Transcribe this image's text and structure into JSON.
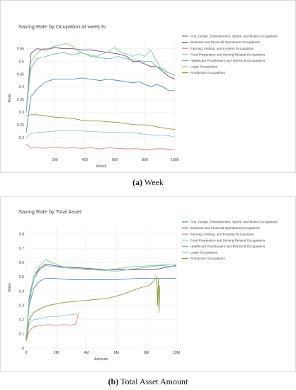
{
  "captions": [
    {
      "label": "(a)",
      "text": "Week"
    },
    {
      "label": "(b)",
      "text": "Total Asset Amount"
    }
  ],
  "chart_data": [
    {
      "type": "line",
      "title": "Saving Rate by Ocupation at week ts",
      "xlabel": "Week",
      "ylabel": "Rate",
      "xlim": [
        10,
        1010
      ],
      "ylim": [
        0.13,
        0.58
      ],
      "xticks": [
        200,
        400,
        600,
        800,
        1000
      ],
      "xtick_labels": [
        "200",
        "400",
        "600",
        "800",
        "1000"
      ],
      "yticks": [
        0.15,
        0.2,
        0.25,
        0.3,
        0.35,
        0.4,
        0.45,
        0.5,
        0.55
      ],
      "ytick_labels": [
        "",
        "0.2",
        "0.25",
        "0.3",
        "0.35",
        "0.4",
        "0.45",
        "0.5",
        "0.55"
      ],
      "grid": true,
      "legend_position": "right",
      "series": [
        {
          "name": "Arts, Design, Entertainment, Sports, and Media Occupations",
          "color": "#5b87b8",
          "x": [
            10,
            40,
            80,
            140,
            200,
            260,
            320,
            380,
            440,
            500,
            560,
            620,
            680,
            720,
            760,
            800,
            840,
            880,
            920,
            960,
            1000
          ],
          "y": [
            0.22,
            0.36,
            0.39,
            0.42,
            0.43,
            0.43,
            0.43,
            0.435,
            0.43,
            0.425,
            0.43,
            0.425,
            0.42,
            0.415,
            0.42,
            0.41,
            0.4,
            0.41,
            0.4,
            0.385,
            0.385
          ]
        },
        {
          "name": "Business and Financial Operations Occupations",
          "color": "#7b3f8c",
          "x": [
            10,
            40,
            80,
            140,
            200,
            260,
            320,
            380,
            440,
            500,
            560,
            620,
            680,
            720,
            760,
            800,
            840,
            880,
            920,
            960,
            1000
          ],
          "y": [
            0.3,
            0.53,
            0.55,
            0.545,
            0.555,
            0.55,
            0.55,
            0.545,
            0.545,
            0.54,
            0.535,
            0.53,
            0.52,
            0.5,
            0.5,
            0.49,
            0.48,
            0.48,
            0.46,
            0.44,
            0.43
          ]
        },
        {
          "name": "Farming, Fishing, and Forestry Occupations",
          "color": "#e8827e",
          "x": [
            10,
            40,
            80,
            140,
            200,
            260,
            320,
            380,
            440,
            500,
            560,
            620,
            680,
            740,
            800,
            860,
            920,
            980,
            1000
          ],
          "y": [
            0.175,
            0.158,
            0.16,
            0.158,
            0.163,
            0.158,
            0.16,
            0.157,
            0.16,
            0.155,
            0.16,
            0.157,
            0.155,
            0.156,
            0.153,
            0.155,
            0.156,
            0.152,
            0.152
          ]
        },
        {
          "name": "Food Preparation and Serving Related Occupations",
          "color": "#8fc7e0",
          "x": [
            10,
            40,
            80,
            140,
            200,
            260,
            320,
            380,
            440,
            500,
            560,
            620,
            680,
            740,
            800,
            860,
            920,
            980,
            1000
          ],
          "y": [
            0.2,
            0.215,
            0.22,
            0.222,
            0.225,
            0.228,
            0.228,
            0.226,
            0.224,
            0.222,
            0.221,
            0.22,
            0.22,
            0.218,
            0.212,
            0.21,
            0.21,
            0.205,
            0.205
          ]
        },
        {
          "name": "Healthcare Practitioners and Technical Occupations",
          "color": "#6fb8b0",
          "x": [
            10,
            40,
            80,
            140,
            200,
            260,
            320,
            380,
            440,
            500,
            560,
            620,
            680,
            740,
            800,
            840,
            880,
            920,
            960,
            1000
          ],
          "y": [
            0.3,
            0.47,
            0.51,
            0.52,
            0.53,
            0.535,
            0.525,
            0.535,
            0.52,
            0.515,
            0.51,
            0.52,
            0.51,
            0.505,
            0.5,
            0.5,
            0.48,
            0.47,
            0.455,
            0.445
          ]
        },
        {
          "name": "Legal Occupations",
          "color": "#7fd08a",
          "x": [
            10,
            40,
            80,
            120,
            160,
            200,
            240,
            280,
            320,
            360,
            400,
            440,
            480,
            520,
            560,
            600,
            640,
            680,
            720,
            760,
            800,
            840,
            880,
            920,
            960,
            1000
          ],
          "y": [
            0.3,
            0.5,
            0.53,
            0.55,
            0.55,
            0.56,
            0.565,
            0.57,
            0.56,
            0.54,
            0.53,
            0.525,
            0.52,
            0.53,
            0.54,
            0.555,
            0.535,
            0.53,
            0.52,
            0.53,
            0.52,
            0.545,
            0.5,
            0.46,
            0.455,
            0.445
          ]
        },
        {
          "name": "Production Occupations",
          "color": "#8a9a3a",
          "x": [
            10,
            40,
            80,
            140,
            200,
            260,
            320,
            380,
            440,
            500,
            560,
            620,
            680,
            740,
            800,
            860,
            920,
            980,
            1000
          ],
          "y": [
            0.285,
            0.29,
            0.29,
            0.285,
            0.28,
            0.278,
            0.275,
            0.268,
            0.265,
            0.265,
            0.262,
            0.26,
            0.255,
            0.25,
            0.25,
            0.245,
            0.238,
            0.233,
            0.232
          ]
        }
      ]
    },
    {
      "type": "line",
      "title": "Saving Rate by Total Asset",
      "xlabel": "Amount",
      "ylabel": "Rate",
      "xlim": [
        0,
        10000000
      ],
      "ylim": [
        0,
        0.85
      ],
      "xticks": [
        0,
        2000000,
        4000000,
        6000000,
        8000000,
        10000000
      ],
      "xtick_labels": [
        "0",
        "2M",
        "4M",
        "6M",
        "8M",
        "10M"
      ],
      "yticks": [
        0,
        0.1,
        0.2,
        0.3,
        0.4,
        0.5,
        0.6,
        0.7,
        0.8
      ],
      "ytick_labels": [
        "0",
        "0.1",
        "0.2",
        "0.3",
        "0.4",
        "0.5",
        "0.6",
        "0.7",
        "0.8"
      ],
      "grid": true,
      "legend_position": "right",
      "series": [
        {
          "name": "Arts, Design, Entertainment, Sports, and Media Occupations",
          "color": "#5b87b8",
          "x": [
            0,
            200000,
            500000,
            900000,
            1300000,
            1800000,
            3000000,
            4500000,
            6000000,
            7500000,
            9000000,
            10000000
          ],
          "y": [
            0.05,
            0.3,
            0.42,
            0.47,
            0.49,
            0.49,
            0.48,
            0.48,
            0.48,
            0.49,
            0.49,
            0.49
          ]
        },
        {
          "name": "Business and Financial Operations Occupations",
          "color": "#7b3f8c",
          "x": [
            0,
            200000,
            500000,
            900000,
            1300000,
            1800000,
            2500000,
            4000000,
            5500000,
            7000000,
            8500000,
            10000000
          ],
          "y": [
            0.05,
            0.35,
            0.5,
            0.56,
            0.59,
            0.58,
            0.57,
            0.56,
            0.55,
            0.55,
            0.55,
            0.58
          ]
        },
        {
          "name": "Farming, Fishing, and Forestry Occupations",
          "color": "#e8827e",
          "x": [
            0,
            200000,
            500000,
            1000000,
            1500000,
            2000000,
            2500000,
            3000000,
            3300000,
            3400000,
            3500000
          ],
          "y": [
            0.05,
            0.12,
            0.15,
            0.16,
            0.165,
            0.16,
            0.165,
            0.16,
            0.17,
            0.21,
            0.25
          ]
        },
        {
          "name": "Food Preparation and Serving Related Occupations",
          "color": "#8fc7e0",
          "x": [
            0,
            200000,
            500000,
            1000000,
            1500000,
            2000000,
            2500000,
            3000000,
            3400000
          ],
          "y": [
            0.05,
            0.17,
            0.2,
            0.21,
            0.22,
            0.22,
            0.23,
            0.235,
            0.24
          ]
        },
        {
          "name": "Healthcare Practitioners and Technical Occupations",
          "color": "#6fb8b0",
          "x": [
            0,
            200000,
            500000,
            900000,
            1300000,
            1800000,
            3000000,
            4500000,
            6000000,
            7500000,
            9000000,
            10000000
          ],
          "y": [
            0.05,
            0.32,
            0.48,
            0.55,
            0.58,
            0.57,
            0.56,
            0.55,
            0.54,
            0.56,
            0.58,
            0.57
          ]
        },
        {
          "name": "Legal Occupations",
          "color": "#7fd08a",
          "x": [
            0,
            200000,
            500000,
            900000,
            1300000,
            1700000,
            2500000,
            4000000,
            5500000,
            7000000,
            8500000,
            10000000
          ],
          "y": [
            0.05,
            0.33,
            0.5,
            0.58,
            0.62,
            0.6,
            0.57,
            0.55,
            0.55,
            0.57,
            0.58,
            0.59
          ]
        },
        {
          "name": "Production Occupations",
          "color": "#8a9a3a",
          "x": [
            0,
            200000,
            500000,
            1000000,
            1500000,
            2500000,
            3500000,
            4500000,
            5500000,
            6500000,
            7500000,
            8200000,
            8500000,
            8700000,
            8750000,
            8800000,
            8850000,
            8900000
          ],
          "y": [
            0.05,
            0.2,
            0.25,
            0.28,
            0.3,
            0.32,
            0.33,
            0.34,
            0.35,
            0.38,
            0.42,
            0.44,
            0.47,
            0.5,
            0.3,
            0.49,
            0.25,
            0.44
          ]
        }
      ]
    }
  ]
}
